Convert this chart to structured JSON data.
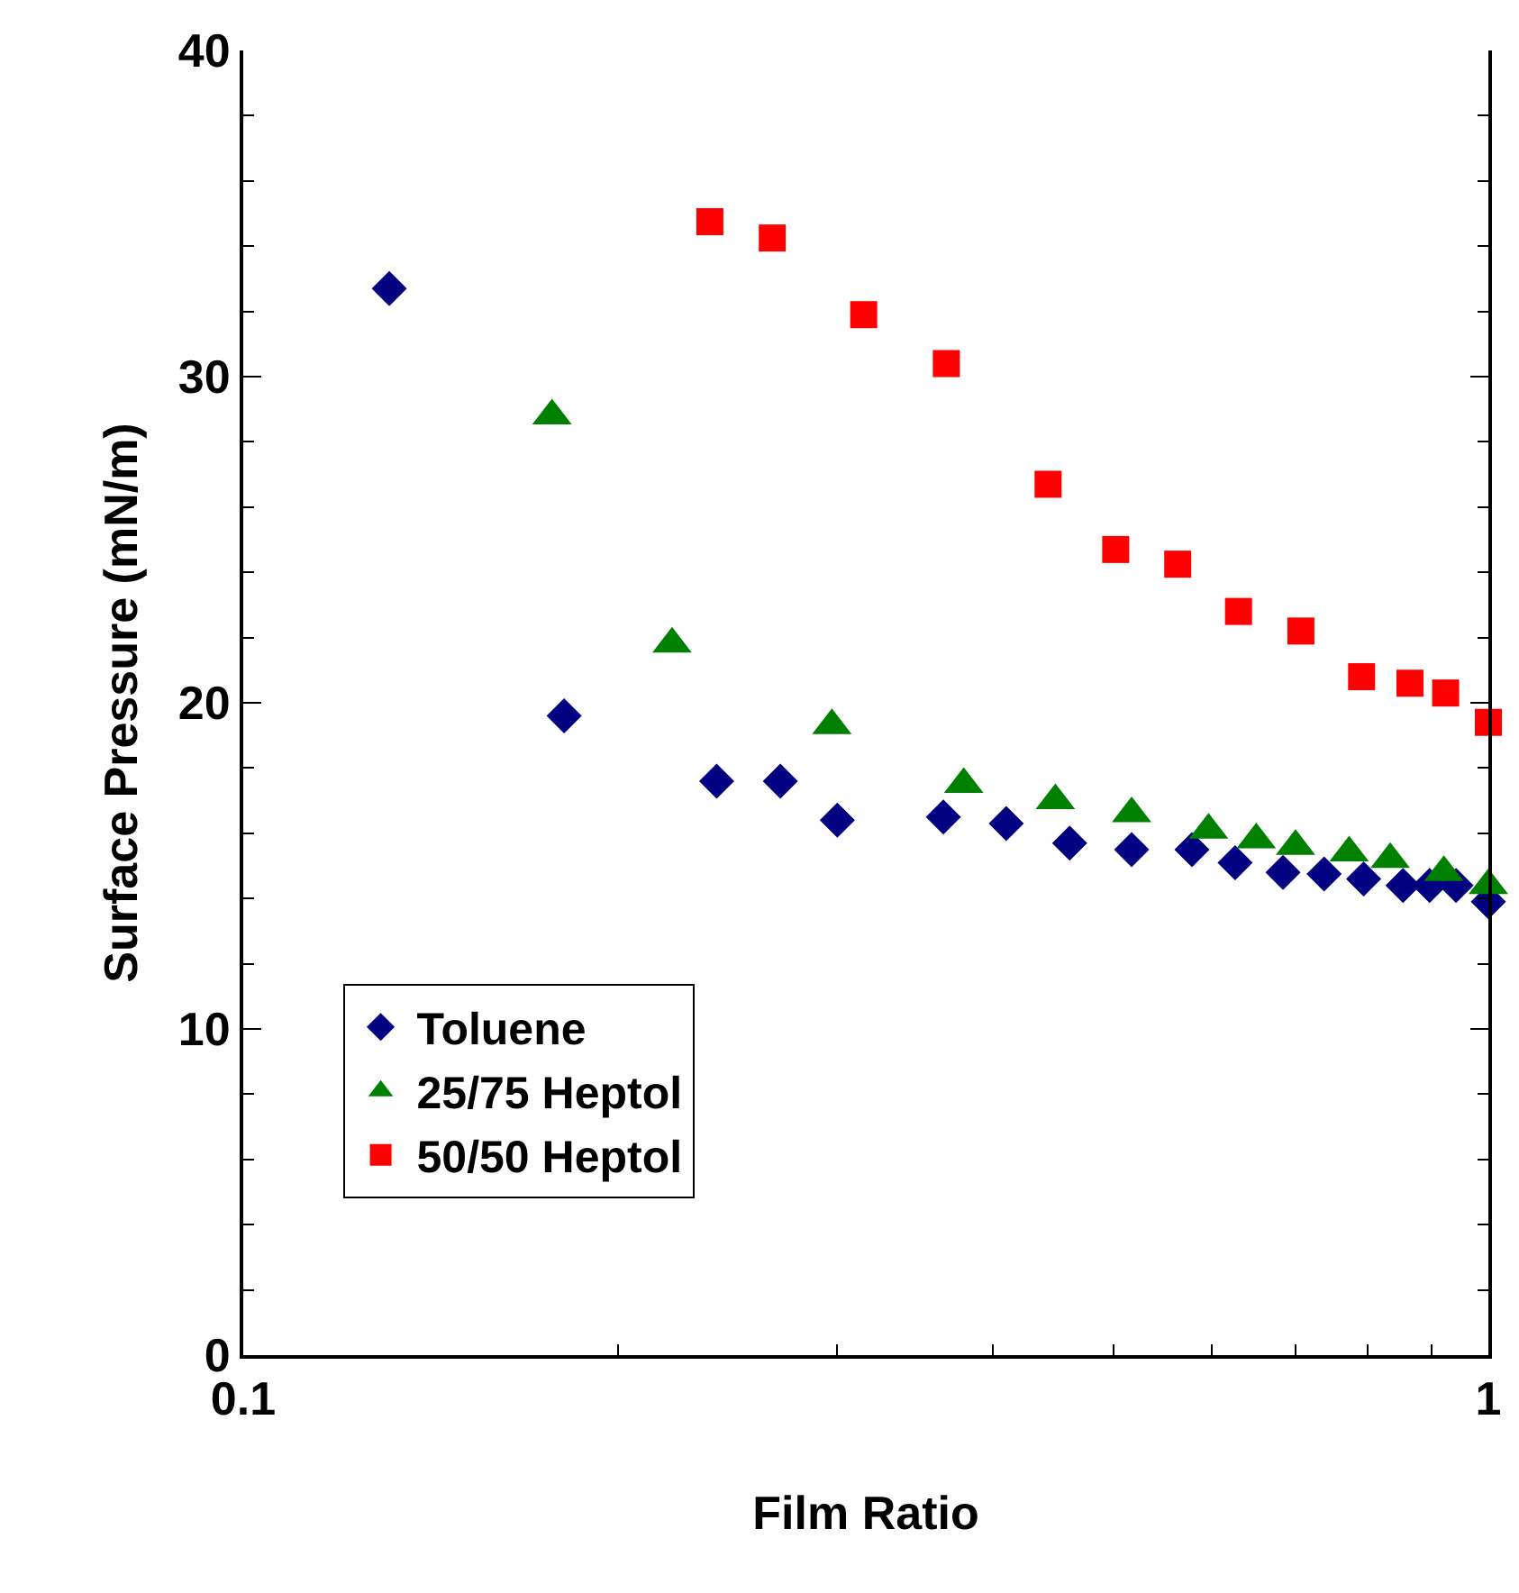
{
  "chart_data": {
    "type": "scatter",
    "xlabel": "Film Ratio",
    "ylabel": "Surface Pressure (mN/m)",
    "log": "x",
    "xlim": [
      0.1,
      1
    ],
    "xticks": [
      0.1,
      1
    ],
    "ylim": [
      0,
      40
    ],
    "yticks": [
      0,
      10,
      20,
      30,
      40
    ],
    "legend": "bottom left",
    "series": [
      {
        "name": "Toluene",
        "color": "#000080",
        "marker": "diamond",
        "x": [
          0.131,
          0.181,
          0.24,
          0.27,
          0.3,
          0.365,
          0.41,
          0.461,
          0.517,
          0.578,
          0.626,
          0.684,
          0.738,
          0.794,
          0.854,
          0.897,
          0.942,
          1.0
        ],
        "values": [
          32.7,
          19.6,
          17.6,
          17.6,
          16.4,
          16.5,
          16.3,
          15.7,
          15.5,
          15.5,
          15.1,
          14.8,
          14.75,
          14.6,
          14.4,
          14.4,
          14.4,
          13.9
        ]
      },
      {
        "name": "25/75 Heptol",
        "color": "#008000",
        "marker": "triangle",
        "x": [
          0.177,
          0.221,
          0.297,
          0.379,
          0.449,
          0.517,
          0.596,
          0.651,
          0.7,
          0.773,
          0.834,
          0.921,
          1.0
        ],
        "values": [
          28.8,
          21.8,
          19.3,
          17.5,
          17.0,
          16.6,
          16.1,
          15.8,
          15.6,
          15.4,
          15.2,
          14.8,
          14.4
        ]
      },
      {
        "name": "50/50 Heptol",
        "color": "#ff0000",
        "marker": "square",
        "x": [
          0.237,
          0.266,
          0.315,
          0.367,
          0.443,
          0.502,
          0.563,
          0.63,
          0.707,
          0.791,
          0.865,
          0.924,
          1.0
        ],
        "values": [
          34.75,
          34.25,
          31.9,
          30.4,
          26.7,
          24.7,
          24.25,
          22.8,
          22.2,
          20.8,
          20.6,
          20.3,
          19.4
        ]
      }
    ]
  }
}
